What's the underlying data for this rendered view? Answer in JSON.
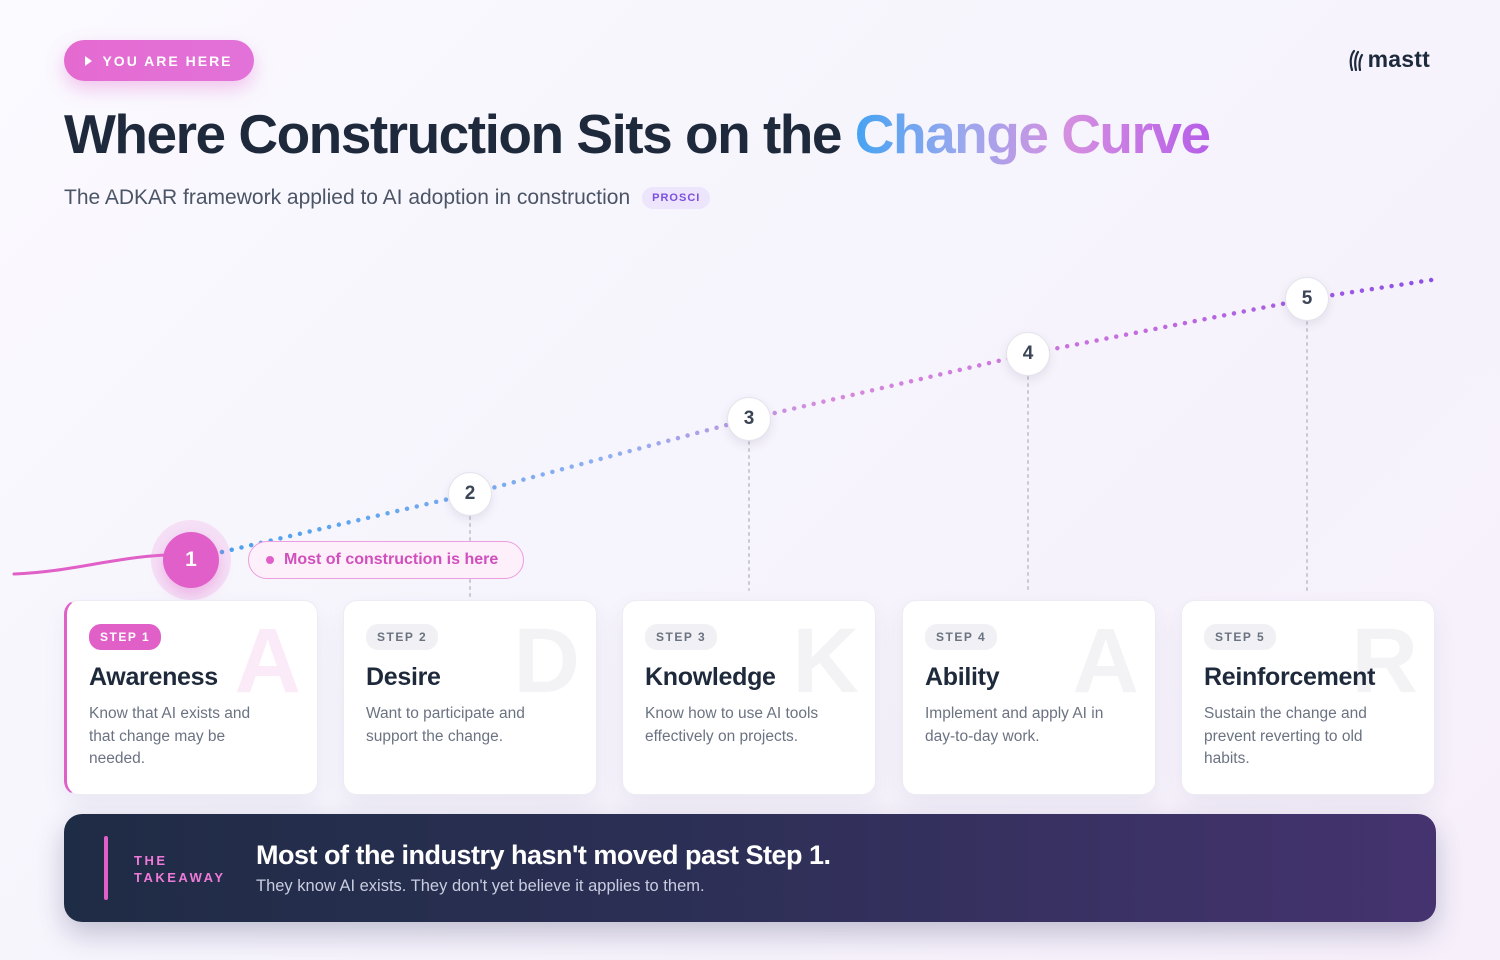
{
  "badge": {
    "label": "YOU ARE HERE",
    "icon": "play-icon"
  },
  "logo": {
    "text": "mastt",
    "icon": "mastt-logo-icon"
  },
  "title": {
    "main": "Where Construction Sits on the ",
    "highlight": "Change Curve"
  },
  "subtitle": {
    "text": "The ADKAR framework applied to AI adoption in construction",
    "badge": "PROSCI"
  },
  "curve": {
    "nodes": [
      "1",
      "2",
      "3",
      "4",
      "5"
    ],
    "current_step": "1",
    "callout": "Most of construction is here"
  },
  "steps": [
    {
      "badge": "STEP 1",
      "title": "Awareness",
      "letter": "A",
      "description": "Know that AI exists and that change may be needed."
    },
    {
      "badge": "STEP 2",
      "title": "Desire",
      "letter": "D",
      "description": "Want to participate and support the change."
    },
    {
      "badge": "STEP 3",
      "title": "Knowledge",
      "letter": "K",
      "description": "Know how to use AI tools effectively on projects."
    },
    {
      "badge": "STEP 4",
      "title": "Ability",
      "letter": "A",
      "description": "Implement and apply AI in day-to-day work."
    },
    {
      "badge": "STEP 5",
      "title": "Reinforcement",
      "letter": "R",
      "description": "Sustain the change and prevent reverting to old habits."
    }
  ],
  "takeaway": {
    "label": "THE TAKEAWAY",
    "headline": "Most of the industry hasn't moved past Step 1.",
    "subtext": "They know AI exists. They don't yet believe it applies to them."
  },
  "colors": {
    "accent_pink": "#e060c8",
    "curve_blue": "#4aa0ee",
    "curve_purple": "#8a4fe6",
    "dark_navy": "#1e2a3b"
  }
}
